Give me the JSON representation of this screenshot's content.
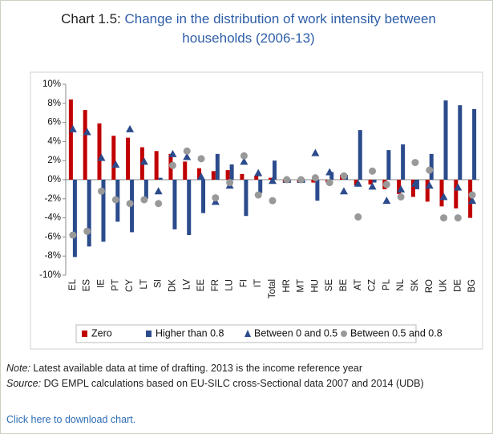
{
  "chart_data": {
    "type": "bar",
    "label": "Chart 1.5:",
    "title": "Change in the distribution of work intensity between households (2006-13)",
    "categories": [
      "EL",
      "ES",
      "IE",
      "PT",
      "CY",
      "LT",
      "SI",
      "DK",
      "LV",
      "EE",
      "FR",
      "LU",
      "FI",
      "IT",
      "Total",
      "HR",
      "MT",
      "HU",
      "SE",
      "BE",
      "AT",
      "CZ",
      "PL",
      "NL",
      "SK",
      "RO",
      "UK",
      "DE",
      "BG"
    ],
    "series": [
      {
        "name": "Zero",
        "color": "#c00000",
        "marker": "bar",
        "values": [
          8.4,
          7.3,
          5.9,
          4.6,
          4.4,
          3.4,
          3.0,
          2.7,
          1.9,
          1.2,
          0.9,
          1.0,
          0.6,
          0.4,
          0.2,
          -0.3,
          -0.3,
          -0.3,
          -0.3,
          0.5,
          -0.6,
          -0.5,
          -1.0,
          -1.5,
          -1.8,
          -2.3,
          -2.8,
          -3.0,
          -4.0
        ]
      },
      {
        "name": "Higher than 0.8",
        "color": "#2b4b8c",
        "marker": "bar",
        "values": [
          -8.1,
          -7.0,
          -6.5,
          -4.4,
          -5.5,
          -2.0,
          0.2,
          -5.2,
          -5.8,
          -3.5,
          2.7,
          1.6,
          -3.8,
          -1.4,
          2.0,
          -0.3,
          -0.3,
          -2.2,
          0.8,
          0.5,
          5.2,
          -0.3,
          3.1,
          3.7,
          -1.0,
          2.7,
          8.3,
          7.8,
          7.4
        ]
      },
      {
        "name": "Between 0 and 0.5",
        "color": "#2b4b8c",
        "marker": "triangle",
        "values": [
          5.3,
          5.0,
          2.3,
          1.6,
          5.3,
          1.9,
          -1.2,
          2.7,
          2.4,
          0.3,
          -2.3,
          -0.6,
          1.9,
          0.7,
          -0.1,
          0,
          0,
          2.8,
          0.8,
          -1.2,
          -0.4,
          -0.7,
          -2.2,
          -1.0,
          -0.4,
          -0.6,
          -1.8,
          -0.8,
          -2.2
        ]
      },
      {
        "name": "Between 0.5 and 0.8",
        "color": "#999999",
        "marker": "circle",
        "values": [
          -5.8,
          -5.4,
          -1.2,
          -2.1,
          -2.5,
          -2.1,
          -2.5,
          1.5,
          3.0,
          2.2,
          -1.9,
          -0.3,
          2.5,
          -1.6,
          -2.2,
          0,
          0,
          0.2,
          -0.3,
          0.4,
          -3.9,
          0.9,
          -0.5,
          -1.8,
          1.8,
          1.0,
          -4.0,
          -4.0,
          -1.6
        ]
      }
    ],
    "ylim": [
      -10,
      10
    ],
    "yticks": [
      {
        "value": -10,
        "label": "-10%"
      },
      {
        "value": -8,
        "label": "-8%"
      },
      {
        "value": -6,
        "label": "-6%"
      },
      {
        "value": -4,
        "label": "-4%"
      },
      {
        "value": -2,
        "label": "-2%"
      },
      {
        "value": 0,
        "label": "0%"
      },
      {
        "value": 2,
        "label": "2%"
      },
      {
        "value": 4,
        "label": "4%"
      },
      {
        "value": 6,
        "label": "6%"
      },
      {
        "value": 8,
        "label": "8%"
      },
      {
        "value": 10,
        "label": "10%"
      }
    ],
    "grid": false,
    "legend": "bottom"
  },
  "notes": {
    "note_label": "Note:",
    "note": "Latest available data at time of drafting. 2013 is the income reference year",
    "source_label": "Source:",
    "source": "DG EMPL calculations based on EU-SILC cross-Sectional data 2007 and 2014 (UDB)",
    "link": "Click here to download chart."
  }
}
